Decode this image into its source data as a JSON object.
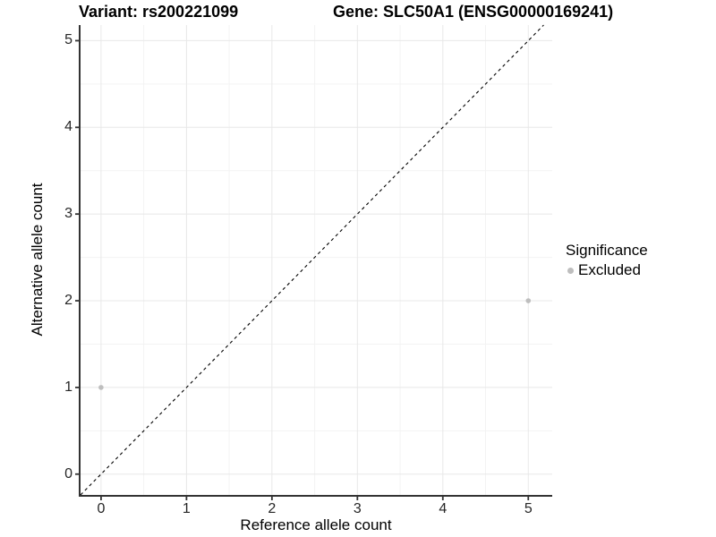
{
  "chart_data": {
    "type": "scatter",
    "title_left": "Variant: rs200221099",
    "title_right": "Gene: SLC50A1 (ENSG00000169241)",
    "xlabel": "Reference allele count",
    "ylabel": "Alternative allele count",
    "xlim": [
      -0.24,
      5.28
    ],
    "ylim": [
      -0.24,
      5.18
    ],
    "xticks": [
      0,
      1,
      2,
      3,
      4,
      5
    ],
    "yticks": [
      0,
      1,
      2,
      3,
      4,
      5
    ],
    "minor_grid_step": 0.5,
    "grid": "major+minor",
    "points": [
      {
        "x": 0,
        "y": 1,
        "significance": "Excluded"
      },
      {
        "x": 5,
        "y": 2,
        "significance": "Excluded"
      }
    ],
    "identity_line": {
      "slope": 1,
      "intercept": 0,
      "style": "dashed",
      "color": "#000000"
    },
    "legend": {
      "title": "Significance",
      "position": "right",
      "items": [
        {
          "label": "Excluded",
          "color": "#bebebe"
        }
      ]
    },
    "colors": {
      "background": "#ffffff",
      "point": "#bebebe",
      "axis": "#333333",
      "major_grid": "#e8e8e8",
      "minor_grid": "#f3f3f3",
      "tick_text": "#262626"
    }
  }
}
